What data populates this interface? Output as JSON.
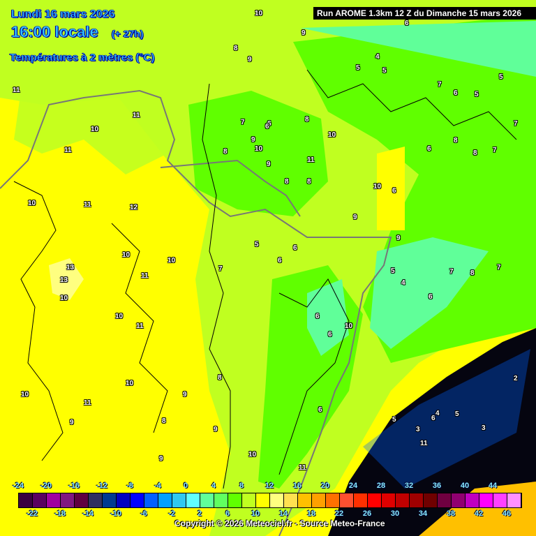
{
  "header": {
    "date": "Lundi 16 mars 2026",
    "time": "16:00 locale",
    "offset": "(+ 27h)",
    "field": "Températures à 2 mètres (°C)"
  },
  "run_info": "Run AROME 1.3km 12 Z du Dimanche 15 mars 2026",
  "legend": {
    "values": [
      -24,
      -22,
      -20,
      -18,
      -16,
      -14,
      -12,
      -10,
      -8,
      -6,
      -4,
      -2,
      0,
      2,
      4,
      6,
      8,
      10,
      12,
      14,
      16,
      18,
      20,
      22,
      24,
      26,
      28,
      30,
      32,
      34,
      36,
      38,
      40,
      42,
      44,
      46
    ],
    "colors": [
      "#3a0040",
      "#5a0060",
      "#a000a0",
      "#801880",
      "#600040",
      "#303060",
      "#003a90",
      "#0000c0",
      "#0000ff",
      "#0060ff",
      "#00a0ff",
      "#30c8f0",
      "#60ffff",
      "#60ff99",
      "#60ff60",
      "#60ff00",
      "#c0ff20",
      "#ffff00",
      "#ffff80",
      "#ffe050",
      "#ffc000",
      "#ffa000",
      "#ff7000",
      "#ff5030",
      "#ff3000",
      "#ff0000",
      "#e00000",
      "#c00000",
      "#a00000",
      "#700000",
      "#700040",
      "#900070",
      "#c000c0",
      "#ff00ff",
      "#ff40ff",
      "#ff90ff"
    ],
    "top_labels": [
      "-24",
      "-20",
      "-16",
      "-12",
      "-8",
      "-4",
      "0",
      "4",
      "8",
      "12",
      "16",
      "20",
      "24",
      "28",
      "32",
      "36",
      "40",
      "44"
    ],
    "bottom_labels": [
      "-22",
      "-18",
      "-14",
      "-10",
      "-6",
      "-2",
      "2",
      "6",
      "10",
      "14",
      "18",
      "22",
      "26",
      "30",
      "34",
      "38",
      "42",
      "46"
    ]
  },
  "copyright": "Copyright © 2026 Meteociel.fr - Source Meteo-France",
  "map_labels": [
    "10",
    "9",
    "8",
    "9",
    "11",
    "11",
    "10",
    "11",
    "10",
    "11",
    "12",
    "13",
    "13",
    "10",
    "10",
    "10",
    "11",
    "10",
    "11",
    "10",
    "11",
    "9",
    "10",
    "9",
    "7",
    "5",
    "6",
    "6",
    "8",
    "7",
    "6",
    "9",
    "10",
    "8",
    "10",
    "11",
    "9",
    "8",
    "8",
    "9",
    "6",
    "5",
    "4",
    "5",
    "6",
    "7",
    "6",
    "8",
    "8",
    "7",
    "6",
    "5",
    "5",
    "7",
    "9",
    "10",
    "6",
    "6",
    "6",
    "5",
    "4",
    "6",
    "7",
    "8",
    "7",
    "8",
    "9",
    "10",
    "9",
    "8",
    "6",
    "5",
    "3",
    "4",
    "2",
    "6",
    "5",
    "3",
    "11",
    "10",
    "11"
  ]
}
